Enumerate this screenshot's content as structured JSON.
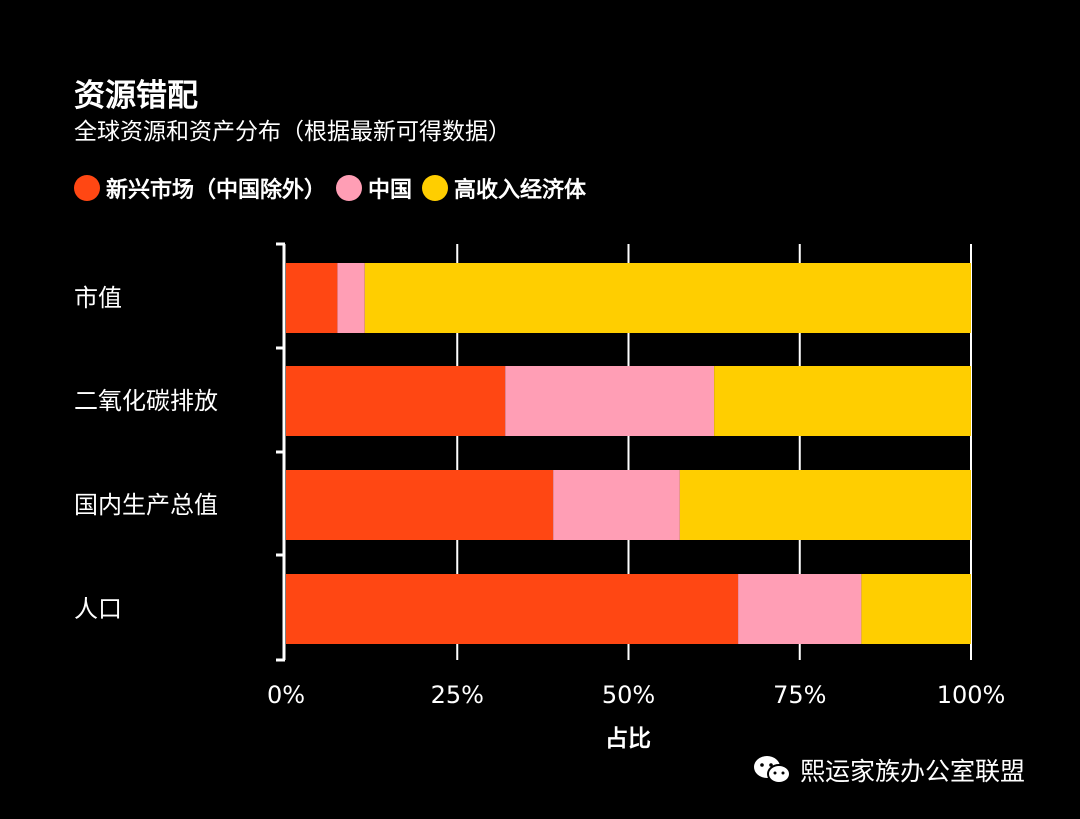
{
  "title": "资源错配",
  "subtitle": "全球资源和资产分布（根据最新可得数据）",
  "watermark": "熙运家族办公室联盟",
  "colors": {
    "emerging": "#ff4713",
    "china": "#ff9eb5",
    "high_income": "#ffce00",
    "background": "#000000",
    "text": "#ffffff"
  },
  "chart_data": {
    "type": "bar",
    "orientation": "horizontal",
    "stacked": true,
    "categories": [
      "市值",
      "二氧化碳排放",
      "国内生产总值",
      "人口"
    ],
    "series": [
      {
        "name": "新兴市场（中国除外）",
        "color": "#ff4713",
        "values": [
          7.5,
          32,
          39,
          66
        ]
      },
      {
        "name": "中国",
        "color": "#ff9eb5",
        "values": [
          4,
          30.5,
          18.5,
          18
        ]
      },
      {
        "name": "高收入经济体",
        "color": "#ffce00",
        "values": [
          88.5,
          37.5,
          42.5,
          16
        ]
      }
    ],
    "xlabel": "占比",
    "xlim": [
      0,
      100
    ],
    "xticks": [
      "0%",
      "25%",
      "50%",
      "75%",
      "100%"
    ],
    "xtick_values": [
      0,
      25,
      50,
      75,
      100
    ],
    "grid": true,
    "legend_position": "top-left"
  }
}
